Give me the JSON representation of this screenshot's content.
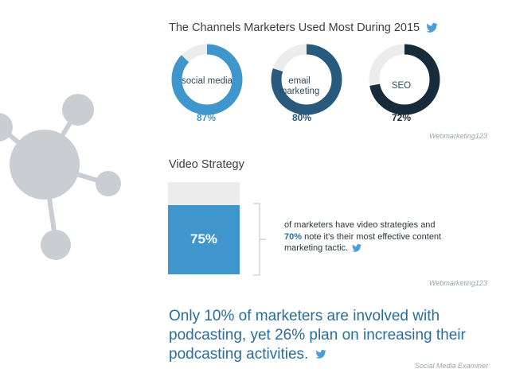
{
  "colors": {
    "social": "#3e96cc",
    "email": "#275a7d",
    "seo": "#172b3a",
    "track": "#ececec",
    "node": "#c9ced3",
    "twitter": "#4a9fd8",
    "accent_text": "#2a6d9c"
  },
  "section1": {
    "title": "The Channels Marketers Used Most During 2015",
    "credit": "Webmarketing123"
  },
  "section2": {
    "title": "Video Strategy",
    "description_part1": "of marketers have video strategies and ",
    "description_highlight": "70%",
    "description_part2": " note it’s their most effective content marketing tactic.",
    "credit": "Webmarketing123"
  },
  "section3": {
    "statement": "Only 10% of marketers are involved with podcasting, yet 26% plan on increasing their podcasting activities.",
    "credit": "Social Media Examiner"
  },
  "chart_data": [
    {
      "type": "pie",
      "title": "The Channels Marketers Used Most During 2015",
      "categories": [
        "social media",
        "email marketing",
        "SEO"
      ],
      "values": [
        87,
        80,
        72
      ],
      "value_labels": [
        "87%",
        "80%",
        "72%"
      ],
      "unit": "%"
    },
    {
      "type": "bar",
      "title": "Video Strategy",
      "categories": [
        ""
      ],
      "values": [
        75
      ],
      "value_labels": [
        "75%"
      ],
      "ylim": [
        0,
        100
      ],
      "unit": "%"
    }
  ]
}
